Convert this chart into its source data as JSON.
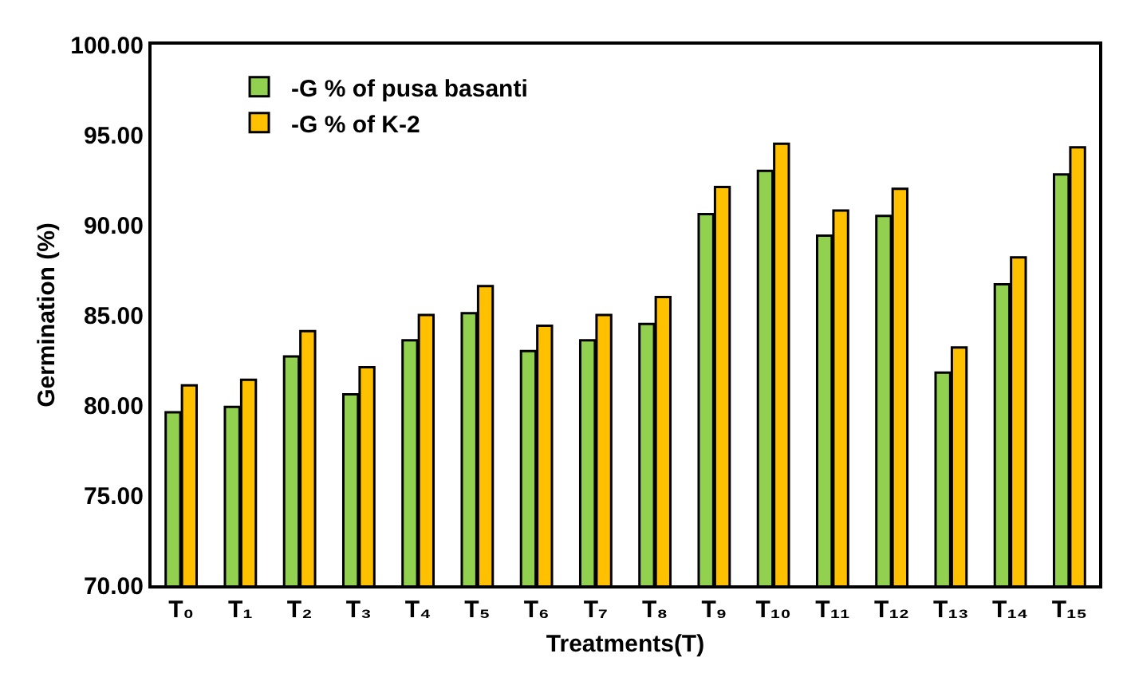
{
  "chart_data": {
    "type": "bar",
    "xlabel": "Treatments(T)",
    "ylabel": "Germination (%)",
    "categories": [
      "T₀",
      "T₁",
      "T₂",
      "T₃",
      "T₄",
      "T₅",
      "T₆",
      "T₇",
      "T₈",
      "T₉",
      "T₁₀",
      "T₁₁",
      "T₁₂",
      "T₁₃",
      "T₁₄",
      "T₁₅"
    ],
    "series": [
      {
        "name": "-G % of pusa basanti",
        "color": "#92d050",
        "values": [
          79.6,
          79.9,
          82.7,
          80.6,
          83.6,
          85.1,
          83.0,
          83.6,
          84.5,
          90.6,
          93.0,
          89.4,
          90.5,
          81.8,
          86.7,
          92.8
        ]
      },
      {
        "name": "-G % of K-2",
        "color": "#ffc000",
        "values": [
          81.1,
          81.4,
          84.1,
          82.1,
          85.0,
          86.6,
          84.4,
          85.0,
          86.0,
          92.1,
          94.5,
          90.8,
          92.0,
          83.2,
          88.2,
          94.3
        ]
      }
    ],
    "ylim": [
      70,
      100
    ],
    "yticks": [
      {
        "value": 70,
        "label": "70.00"
      },
      {
        "value": 75,
        "label": "75.00"
      },
      {
        "value": 80,
        "label": "80.00"
      },
      {
        "value": 85,
        "label": "85.00"
      },
      {
        "value": 90,
        "label": "90.00"
      },
      {
        "value": 95,
        "label": "95.00"
      },
      {
        "value": 100,
        "label": "100.00"
      }
    ],
    "grid": false,
    "legend": "top left"
  }
}
